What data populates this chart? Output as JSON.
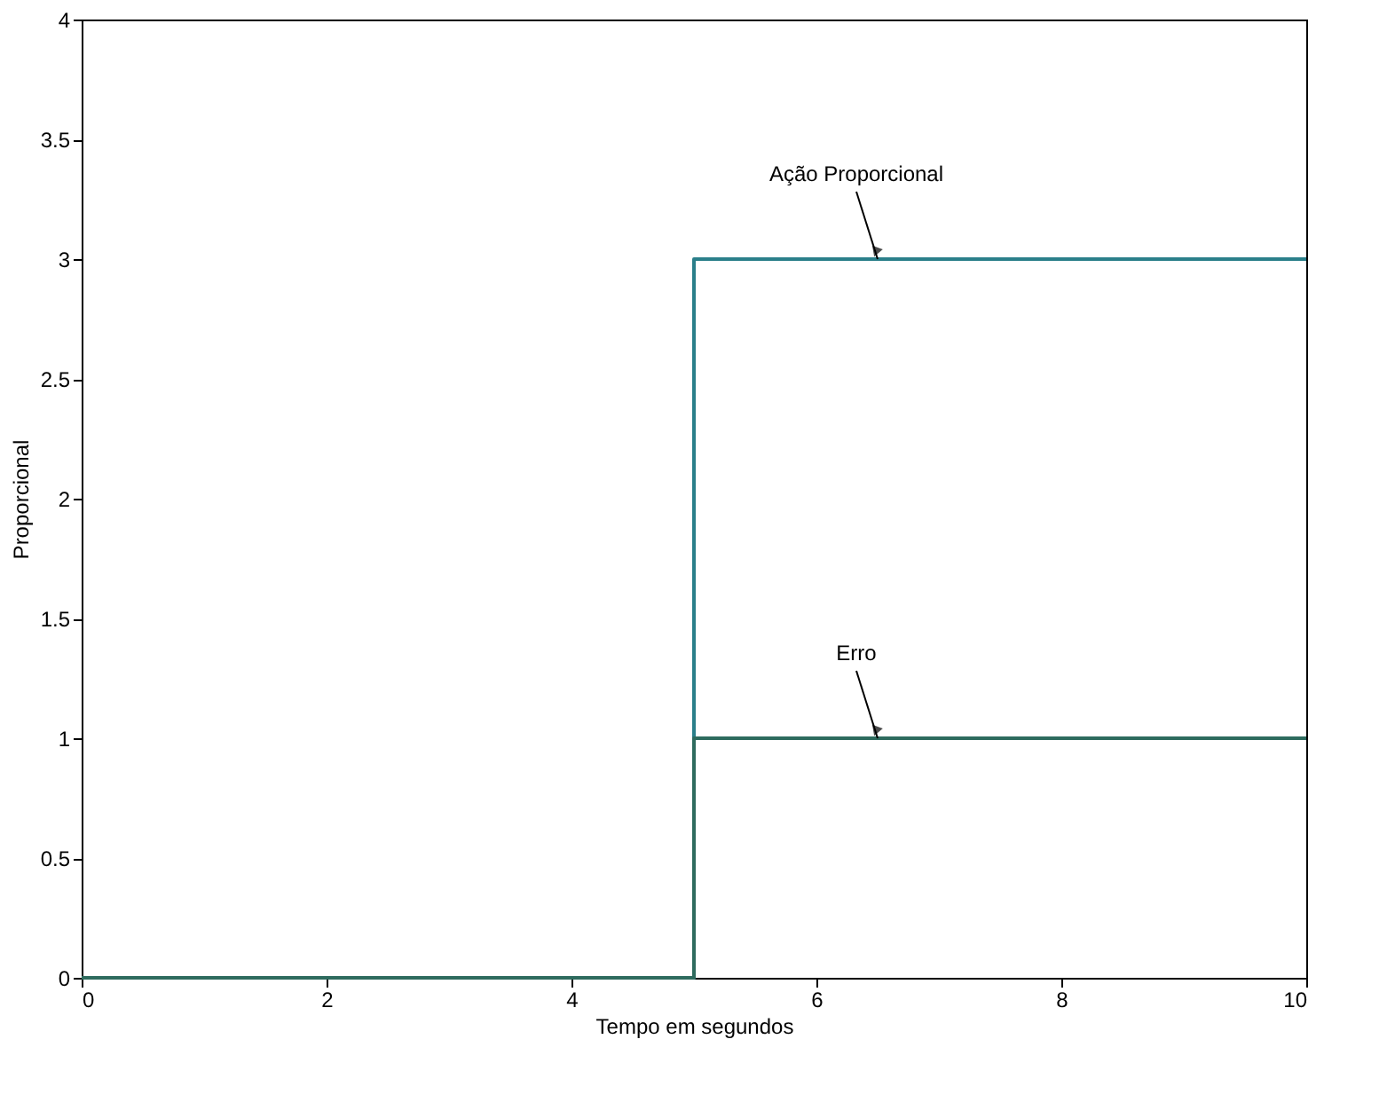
{
  "chart_data": {
    "type": "step",
    "xlabel": "Tempo em segundos",
    "ylabel": "Proporcional",
    "x": [
      0,
      5,
      10
    ],
    "series": [
      {
        "name": "Ação Proporcional",
        "color": "#2a7f8a",
        "values": [
          0,
          3,
          3
        ]
      },
      {
        "name": "Erro",
        "color": "#2e6b5e",
        "values": [
          0,
          1,
          1
        ]
      }
    ],
    "xlim": [
      0,
      10
    ],
    "xticks": [
      0,
      2,
      4,
      6,
      8,
      10
    ],
    "ylim": [
      0,
      4
    ],
    "yticks": [
      0,
      0.5,
      1,
      1.5,
      2,
      2.5,
      3,
      3.5,
      4
    ],
    "grid": false,
    "legend": false
  }
}
